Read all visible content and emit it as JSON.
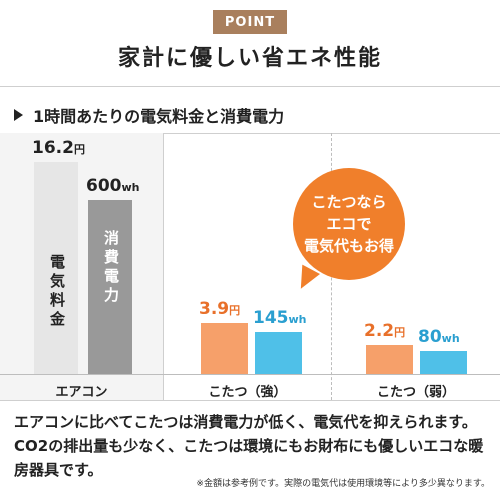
{
  "badge": "POINT",
  "headline": "家計に優しい省エネ性能",
  "section_title": "1時間あたりの電気料金と消費電力",
  "bubble": {
    "lines": [
      "こたつなら",
      "エコで",
      "電気代もお得"
    ],
    "color": "#f07f2b"
  },
  "description": "エアコンに比べてこたつは消費電力が低く、電気代を抑えられます。CO2の排出量も少なく、こたつは環境にもお財布にも優しいエコな暖房器具です。",
  "note": "※金額は参考例です。実際の電気代は使用環境等により多少異なります。",
  "chart_data": {
    "type": "bar",
    "title": "1時間あたりの電気料金と消費電力",
    "categories": [
      "エアコン",
      "こたつ（強）",
      "こたつ（弱）"
    ],
    "series": [
      {
        "name": "電気料金",
        "unit": "円",
        "values": [
          16.2,
          3.9,
          2.2
        ],
        "colors": [
          "#e6e6e6",
          "#f6a06a",
          "#f6a06a"
        ]
      },
      {
        "name": "消費電力",
        "unit": "wh",
        "values": [
          600,
          145,
          80
        ],
        "colors": [
          "#999999",
          "#4fc0e8",
          "#4fc0e8"
        ]
      }
    ],
    "value_labels": {
      "cost": [
        {
          "num": "16.2",
          "unit": "円"
        },
        {
          "num": "3.9",
          "unit": "円"
        },
        {
          "num": "2.2",
          "unit": "円"
        }
      ],
      "power": [
        {
          "num": "600",
          "unit": "wh"
        },
        {
          "num": "145",
          "unit": "wh"
        },
        {
          "num": "80",
          "unit": "wh"
        }
      ]
    },
    "bar_inner_labels": [
      "電気料金",
      "消費電力"
    ]
  }
}
